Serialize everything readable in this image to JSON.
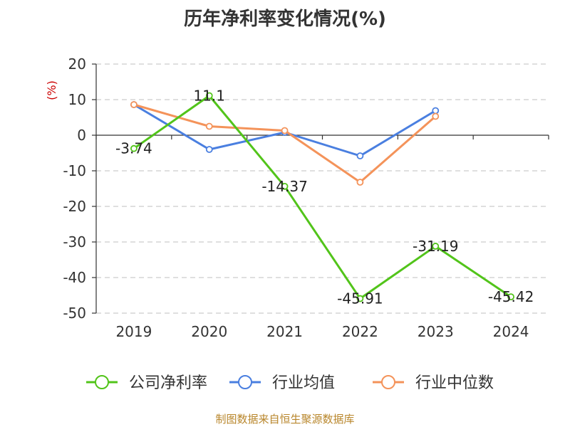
{
  "chart_data": {
    "type": "line",
    "title": "历年净利率变化情况(%)",
    "ylabel": "(%)",
    "categories": [
      "2019",
      "2020",
      "2021",
      "2022",
      "2023",
      "2024"
    ],
    "ylim": [
      -50,
      20
    ],
    "yticks": [
      20,
      10,
      0,
      -10,
      -20,
      -30,
      -40,
      -50
    ],
    "grid": true,
    "legend_position": "bottom",
    "series": [
      {
        "name": "公司净利率",
        "color": "#52c41a",
        "values": [
          -3.74,
          11.1,
          -14.37,
          -45.91,
          -31.19,
          -45.42
        ],
        "labels": [
          "-3.74",
          "11.1",
          "-14.37",
          "-45.91",
          "-31.19",
          "-45.42"
        ]
      },
      {
        "name": "行业均值",
        "color": "#4a7fe0",
        "values": [
          8.6,
          -4.0,
          0.8,
          -5.8,
          6.9,
          null
        ]
      },
      {
        "name": "行业中位数",
        "color": "#f4935a",
        "values": [
          8.6,
          2.5,
          1.3,
          -13.2,
          5.3,
          null
        ]
      }
    ]
  },
  "source": "制图数据来自恒生聚源数据库"
}
